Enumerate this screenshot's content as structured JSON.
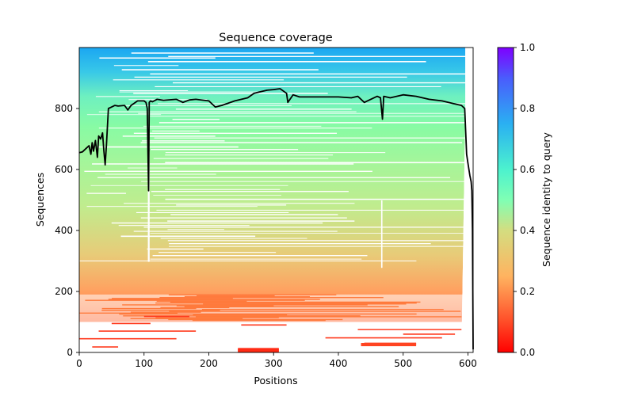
{
  "chart_data": {
    "type": "heatmap",
    "title": "Sequence coverage",
    "xlabel": "Positions",
    "ylabel": "Sequences",
    "xlim": [
      0,
      608
    ],
    "ylim": [
      0,
      1000
    ],
    "x_ticks": [
      0,
      100,
      200,
      300,
      400,
      500,
      600
    ],
    "y_ticks": [
      0,
      200,
      400,
      600,
      800
    ],
    "grid": false,
    "colorbar": {
      "label": "Sequence identity to query",
      "range": [
        0.0,
        1.0
      ],
      "ticks": [
        "0.0",
        "0.2",
        "0.4",
        "0.6",
        "0.8",
        "1.0"
      ],
      "colormap": "rainbow"
    },
    "heatmap_bands": [
      {
        "y": [
          0,
          20
        ],
        "identity": 0.05,
        "coverage": "sparse"
      },
      {
        "y": [
          20,
          100
        ],
        "identity": 0.12,
        "coverage": "sparse"
      },
      {
        "y": [
          100,
          190
        ],
        "identity": 0.18,
        "coverage": "fragmented"
      },
      {
        "y": [
          190,
          280
        ],
        "identity": 0.26,
        "coverage": "mostly full"
      },
      {
        "y": [
          280,
          420
        ],
        "identity": 0.34,
        "coverage": "full"
      },
      {
        "y": [
          420,
          560
        ],
        "identity": 0.42,
        "coverage": "full"
      },
      {
        "y": [
          560,
          700
        ],
        "identity": 0.48,
        "coverage": "full"
      },
      {
        "y": [
          700,
          860
        ],
        "identity": 0.55,
        "coverage": "full"
      },
      {
        "y": [
          860,
          940
        ],
        "identity": 0.65,
        "coverage": "full"
      },
      {
        "y": [
          940,
          1000
        ],
        "identity": 0.8,
        "coverage": "full"
      }
    ],
    "series": [
      {
        "name": "coverage",
        "color": "#000000",
        "x": [
          0,
          5,
          10,
          15,
          18,
          20,
          22,
          25,
          28,
          30,
          33,
          36,
          38,
          40,
          42,
          45,
          50,
          55,
          60,
          70,
          75,
          80,
          90,
          95,
          100,
          103,
          105,
          107,
          108,
          110,
          113,
          120,
          130,
          150,
          160,
          170,
          180,
          200,
          210,
          220,
          240,
          260,
          270,
          280,
          290,
          300,
          310,
          320,
          322,
          330,
          340,
          380,
          400,
          420,
          430,
          440,
          450,
          460,
          465,
          468,
          470,
          480,
          500,
          520,
          540,
          560,
          580,
          590,
          595,
          598,
          600,
          603,
          605,
          606,
          607,
          608
        ],
        "y": [
          655,
          658,
          668,
          678,
          650,
          688,
          660,
          695,
          640,
          710,
          700,
          720,
          660,
          615,
          680,
          800,
          805,
          810,
          808,
          810,
          795,
          810,
          825,
          825,
          825,
          820,
          800,
          530,
          820,
          825,
          822,
          830,
          827,
          830,
          820,
          828,
          830,
          825,
          805,
          810,
          825,
          835,
          850,
          855,
          860,
          862,
          865,
          850,
          820,
          845,
          838,
          838,
          838,
          835,
          840,
          820,
          830,
          840,
          835,
          765,
          840,
          835,
          845,
          840,
          830,
          825,
          815,
          810,
          800,
          650,
          620,
          580,
          560,
          530,
          400,
          10
        ]
      }
    ]
  }
}
